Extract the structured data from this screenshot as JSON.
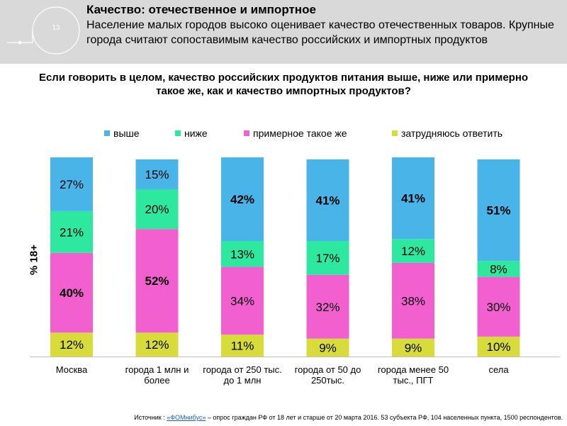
{
  "header": {
    "slide_number": "13",
    "title": "Качество: отечественное и импортное",
    "subtitle": "Население малых городов высоко оценивает качество отечественных товаров. Крупные города считают сопоставимым качество российских и импортных продуктов"
  },
  "colors": {
    "header_bg": "#d9d9d9",
    "above": "#48b4e8",
    "below": "#2ee8a0",
    "same": "#f25fcf",
    "hard": "#d7dc3a"
  },
  "chart_data": {
    "type": "bar",
    "stacked": true,
    "title": "Если говорить в целом, качество российских продуктов питания выше, ниже или примерно такое же, как и качество импортных продуктов?",
    "ylabel": "% 18+",
    "xlabel": "",
    "ylim": [
      0,
      100
    ],
    "legend_position": "top",
    "categories": [
      "Москва",
      "города 1 млн и более",
      "города от 250 тыс. до 1 млн",
      "города от 50 до 250тыс.",
      "города менее 50 тыс., ПГТ",
      "села"
    ],
    "category_lines": [
      [
        "Москва"
      ],
      [
        "города 1 млн и",
        "более"
      ],
      [
        "города от 250 тыс.",
        "до 1 млн"
      ],
      [
        "города от 50 до",
        "250тыс."
      ],
      [
        "города менее 50",
        "тыс., ПГТ"
      ],
      [
        "села"
      ]
    ],
    "series": [
      {
        "name": "затрудняюсь ответить",
        "key": "hard",
        "values": [
          12,
          12,
          11,
          9,
          9,
          10
        ],
        "bold": [
          false,
          false,
          false,
          false,
          false,
          false
        ]
      },
      {
        "name": "примерное такое же",
        "key": "same",
        "values": [
          40,
          52,
          34,
          32,
          38,
          30
        ],
        "bold": [
          true,
          true,
          false,
          false,
          false,
          false
        ]
      },
      {
        "name": "ниже",
        "key": "below",
        "values": [
          21,
          20,
          13,
          17,
          12,
          8
        ],
        "bold": [
          false,
          false,
          false,
          false,
          false,
          false
        ]
      },
      {
        "name": "выше",
        "key": "above",
        "values": [
          27,
          15,
          42,
          41,
          41,
          51
        ],
        "bold": [
          false,
          false,
          true,
          true,
          true,
          true
        ]
      }
    ],
    "legend_order": [
      "выше",
      "ниже",
      "примерное такое же",
      "затрудняюсь ответить"
    ]
  },
  "source": {
    "prefix": "Источник : ",
    "link": "«ФОМнибус»",
    "text": " – опрос граждан РФ от 18 лет и старше от 20 марта 2016. 53 субъекта РФ, 104 населенных пункта, 1500 респондентов."
  }
}
